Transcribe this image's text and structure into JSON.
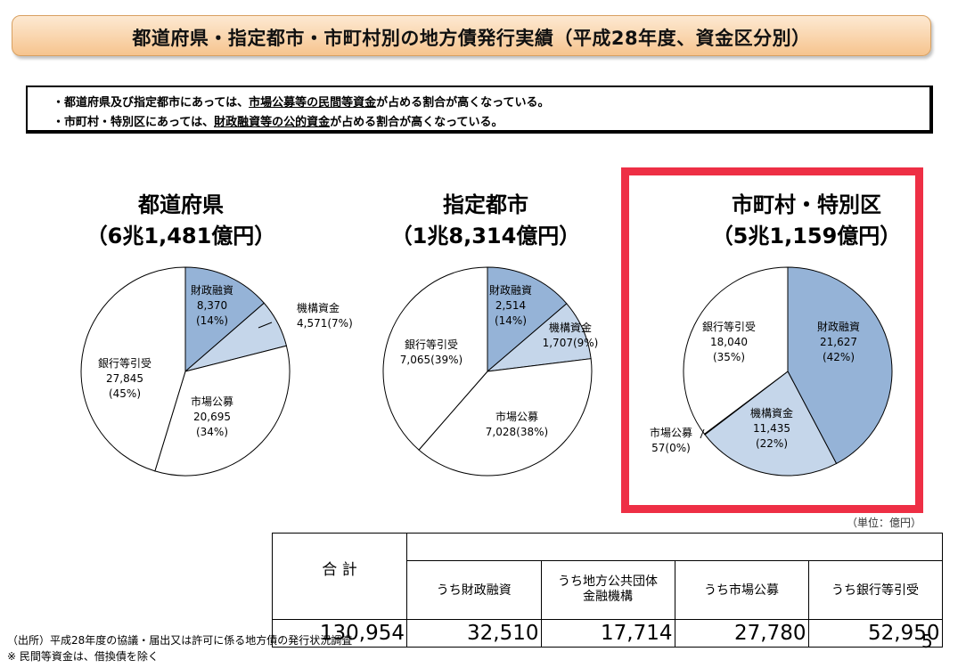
{
  "title": "都道府県・指定都市・市町村別の地方債発行実績（平成28年度、資金区分別）",
  "summary": {
    "line1_prefix": "・都道府県及び指定都市にあっては、",
    "line1_underlined": "市場公募等の民間等資金",
    "line1_suffix": "が占める割合が高くなっている。",
    "line2_prefix": "・市町村・特別区にあっては、",
    "line2_underlined": "財政融資等の公的資金",
    "line2_suffix": "が占める割合が高くなっている。"
  },
  "chart_data": [
    {
      "type": "pie",
      "title": "都道府県",
      "subtitle": "（6兆1,481億円）",
      "slices": [
        {
          "label": "財政融資",
          "value": 8370,
          "value_text": "8,370",
          "pct_text": "(14%)",
          "color": "#95b3d7"
        },
        {
          "label": "機構資金",
          "value": 4571,
          "value_text": "4,571(7%)",
          "pct_text": "",
          "color": "#c5d6ea"
        },
        {
          "label": "市場公募",
          "value": 20695,
          "value_text": "20,695",
          "pct_text": "(34%)",
          "color": "#ffffff"
        },
        {
          "label": "銀行等引受",
          "value": 27845,
          "value_text": "27,845",
          "pct_text": "(45%)",
          "color": "#ffffff"
        }
      ]
    },
    {
      "type": "pie",
      "title": "指定都市",
      "subtitle": "（1兆8,314億円）",
      "slices": [
        {
          "label": "財政融資",
          "value": 2514,
          "value_text": "2,514",
          "pct_text": "(14%)",
          "color": "#95b3d7"
        },
        {
          "label": "機構資金",
          "value": 1707,
          "value_text": "1,707(9%)",
          "pct_text": "",
          "color": "#c5d6ea"
        },
        {
          "label": "市場公募",
          "value": 7028,
          "value_text": "7,028(38%)",
          "pct_text": "",
          "color": "#ffffff"
        },
        {
          "label": "銀行等引受",
          "value": 7065,
          "value_text": "7,065(39%)",
          "pct_text": "",
          "color": "#ffffff"
        }
      ]
    },
    {
      "type": "pie",
      "title": "市町村・特別区",
      "subtitle": "（5兆1,159億円）",
      "slices": [
        {
          "label": "財政融資",
          "value": 21627,
          "value_text": "21,627",
          "pct_text": "(42%)",
          "color": "#95b3d7"
        },
        {
          "label": "機構資金",
          "value": 11435,
          "value_text": "11,435",
          "pct_text": "(22%)",
          "color": "#c5d6ea"
        },
        {
          "label": "市場公募",
          "value": 57,
          "value_text": "57(0%)",
          "pct_text": "",
          "color": "#ffffff"
        },
        {
          "label": "銀行等引受",
          "value": 18040,
          "value_text": "18,040",
          "pct_text": "(35%)",
          "color": "#ffffff"
        }
      ]
    }
  ],
  "unit_note": "（単位：億円）",
  "table": {
    "total_label": "合 計",
    "total_value": "130,954",
    "columns": [
      "うち財政融資",
      "うち地方公共団体\n金融機構",
      "うち市場公募",
      "うち銀行等引受"
    ],
    "values": [
      "32,510",
      "17,714",
      "27,780",
      "52,950"
    ]
  },
  "footer": {
    "source": "（出所）平成28年度の協議・届出又は許可に係る地方債の発行状況調査",
    "note": "※ 民間等資金は、借換債を除く"
  },
  "page_number": "5"
}
